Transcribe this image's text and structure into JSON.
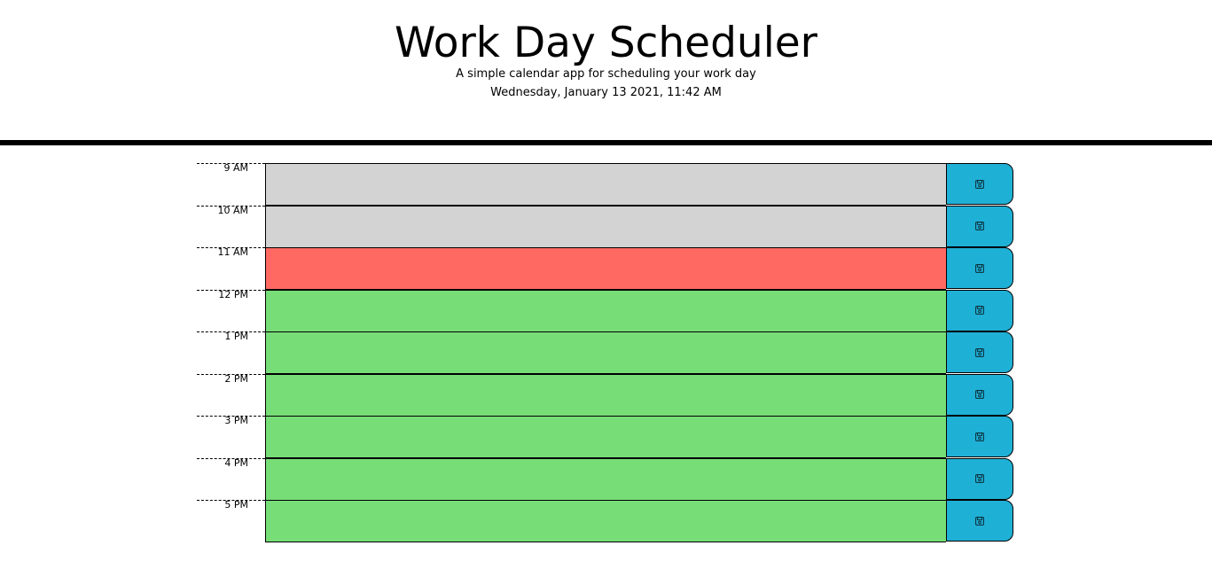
{
  "header": {
    "title": "Work Day Scheduler",
    "subtitle": "A simple calendar app for scheduling your work day",
    "current_day": "Wednesday, January 13 2021, 11:42 AM"
  },
  "colors": {
    "past": "#d3d3d3",
    "present": "#ff6961",
    "future": "#77dd77",
    "save_button": "#1fb0d6"
  },
  "save_icon": "floppy-disk-icon",
  "hours": [
    {
      "label": "9 AM",
      "status": "past",
      "text": ""
    },
    {
      "label": "10 AM",
      "status": "past",
      "text": ""
    },
    {
      "label": "11 AM",
      "status": "present",
      "text": ""
    },
    {
      "label": "12 PM",
      "status": "future",
      "text": ""
    },
    {
      "label": "1 PM",
      "status": "future",
      "text": ""
    },
    {
      "label": "2 PM",
      "status": "future",
      "text": ""
    },
    {
      "label": "3 PM",
      "status": "future",
      "text": ""
    },
    {
      "label": "4 PM",
      "status": "future",
      "text": ""
    },
    {
      "label": "5 PM",
      "status": "future",
      "text": ""
    }
  ]
}
